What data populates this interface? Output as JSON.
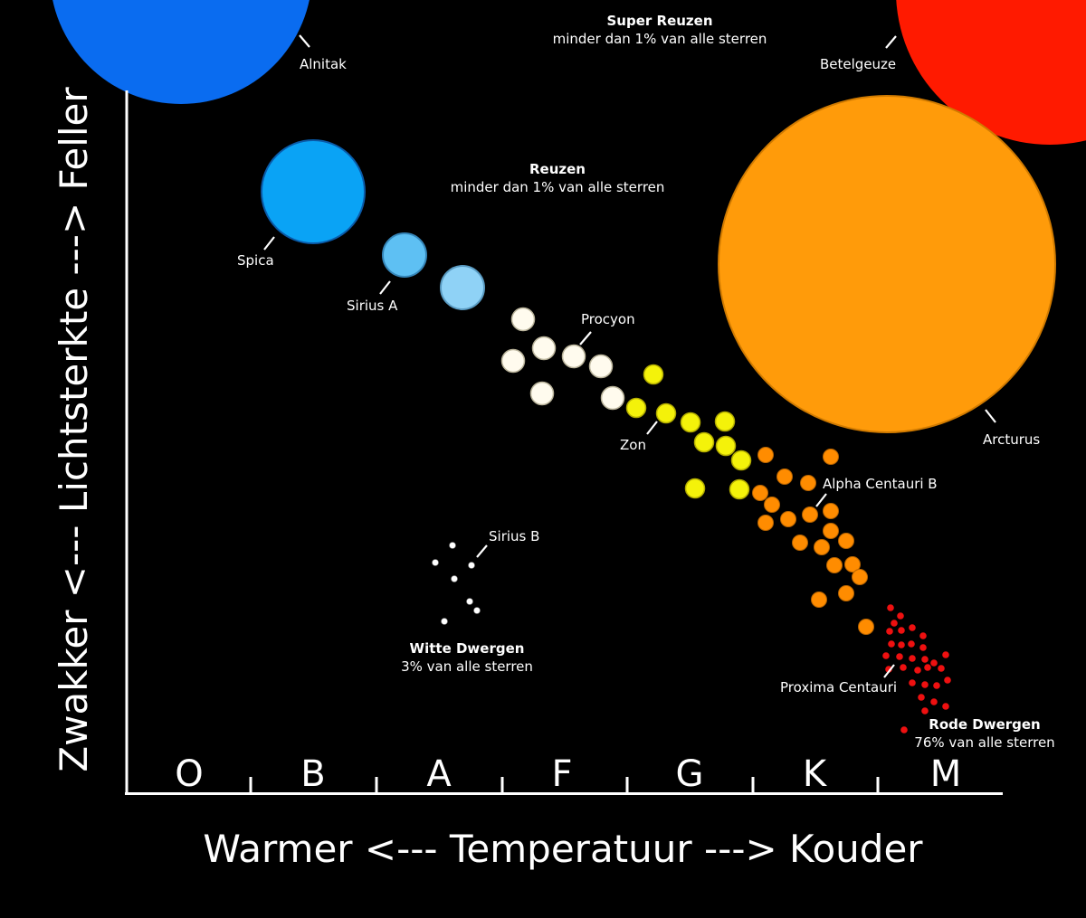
{
  "chart_data": {
    "type": "scatter",
    "xlabel": "Warmer <--- Temperatuur ---> Kouder",
    "ylabel": "Zwakker <--- Lichtsterkte ---> Feller",
    "x_categories": [
      "O",
      "B",
      "A",
      "F",
      "G",
      "K",
      "M"
    ],
    "grid": false,
    "groups": [
      {
        "title": "Super Reuzen",
        "subtitle": "minder dan 1% van alle sterren"
      },
      {
        "title": "Reuzen",
        "subtitle": "minder dan 1% van alle sterren"
      },
      {
        "title": "Witte Dwergen",
        "subtitle": "3% van alle sterren"
      },
      {
        "title": "Rode Dwergen",
        "subtitle": "76% van alle sterren"
      }
    ],
    "stars": [
      {
        "name": "Alnitak",
        "class": "O",
        "color": "#0a6cf0"
      },
      {
        "name": "Betelgeuze",
        "class": "M",
        "color": "#ff1a00"
      },
      {
        "name": "Spica",
        "class": "B",
        "color": "#0aa3f5"
      },
      {
        "name": "Sirius A",
        "class": "A",
        "color": "#5ec0f3"
      },
      {
        "name": "Procyon",
        "class": "F",
        "color": "#fffbee"
      },
      {
        "name": "Zon",
        "class": "G",
        "color": "#f4f20a"
      },
      {
        "name": "Arcturus",
        "class": "K",
        "color": "#ff9b0a"
      },
      {
        "name": "Alpha Centauri B",
        "class": "K",
        "color": "#ff8c00"
      },
      {
        "name": "Sirius B",
        "class": "A",
        "color": "#ffffff"
      },
      {
        "name": "Proxima Centauri",
        "class": "M",
        "color": "#ee1010"
      }
    ],
    "colors": {
      "background": "#000000",
      "white_star": "#fffbee",
      "yellow_star": "#f4f20a",
      "orange_star": "#ff8c00",
      "red_dwarf": "#ee1010",
      "white_dwarf": "#ffffff"
    }
  }
}
